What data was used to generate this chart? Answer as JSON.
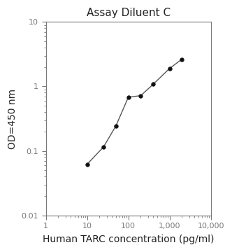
{
  "title": "Assay Diluent C",
  "xlabel": "Human TARC concentration (pg/ml)",
  "ylabel": "OD=450 nm",
  "x_data": [
    10,
    25,
    50,
    100,
    200,
    400,
    1000,
    2000
  ],
  "y_data": [
    0.062,
    0.115,
    0.245,
    0.68,
    0.72,
    1.08,
    1.9,
    2.65
  ],
  "xlim": [
    1,
    10000
  ],
  "ylim": [
    0.01,
    10
  ],
  "line_color": "#555555",
  "marker_color": "#111111",
  "marker_size": 4,
  "title_fontsize": 11,
  "label_fontsize": 10,
  "tick_fontsize": 8,
  "title_color": "#222222",
  "label_color": "#222222",
  "tick_color": "#777777",
  "spine_color": "#777777"
}
